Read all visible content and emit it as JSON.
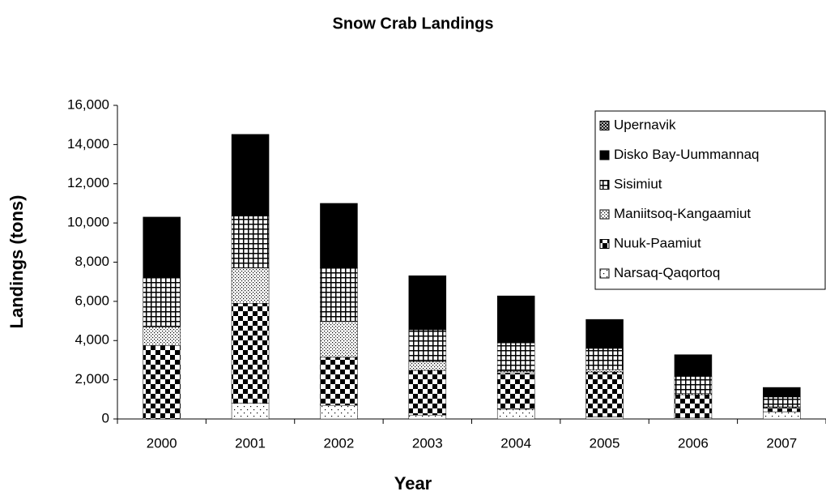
{
  "chart_data": {
    "type": "stacked-bar",
    "title": "Snow Crab Landings",
    "x_label": "Year",
    "y_label": "Landings (tons)",
    "categories": [
      "2000",
      "2001",
      "2002",
      "2003",
      "2004",
      "2005",
      "2006",
      "2007"
    ],
    "series": [
      {
        "name": "Narsaq-Qaqortoq",
        "color": "#000000",
        "pattern": "sparse-dots",
        "values": [
          0,
          800,
          700,
          200,
          500,
          100,
          50,
          370
        ]
      },
      {
        "name": "Nuuk-Paamiut",
        "color": "#000000",
        "pattern": "checker",
        "values": [
          3750,
          5100,
          2450,
          2280,
          1850,
          2300,
          1190,
          210
        ]
      },
      {
        "name": "Maniitsoq-Kangaamiut",
        "color": "#000000",
        "pattern": "dense-dots",
        "values": [
          950,
          1800,
          1820,
          450,
          90,
          120,
          60,
          40
        ]
      },
      {
        "name": "Sisimiut",
        "color": "#000000",
        "pattern": "grid",
        "values": [
          2500,
          2650,
          2730,
          1620,
          1440,
          1080,
          870,
          500
        ]
      },
      {
        "name": "Disko Bay-Uummannaq",
        "color": "#000000",
        "pattern": "solid",
        "values": [
          3100,
          4170,
          3300,
          2760,
          2400,
          1480,
          1110,
          490
        ]
      },
      {
        "name": "Upernavik",
        "color": "#000000",
        "pattern": "crosshatch",
        "values": [
          0,
          0,
          0,
          0,
          0,
          0,
          0,
          0
        ]
      }
    ],
    "ylim": [
      0,
      16000
    ],
    "yticks": [
      0,
      {
        "value": 2000,
        "label": "2,000"
      },
      {
        "value": 4000,
        "label": "4,000"
      },
      {
        "value": 6000,
        "label": "6,000"
      },
      {
        "value": 8000,
        "label": "8,000"
      },
      {
        "value": 10000,
        "label": "10,000"
      },
      {
        "value": 12000,
        "label": "12,000"
      },
      {
        "value": 14000,
        "label": "14,000"
      },
      {
        "value": 16000,
        "label": "16,000"
      }
    ],
    "legend": "upper right",
    "grid": false
  }
}
